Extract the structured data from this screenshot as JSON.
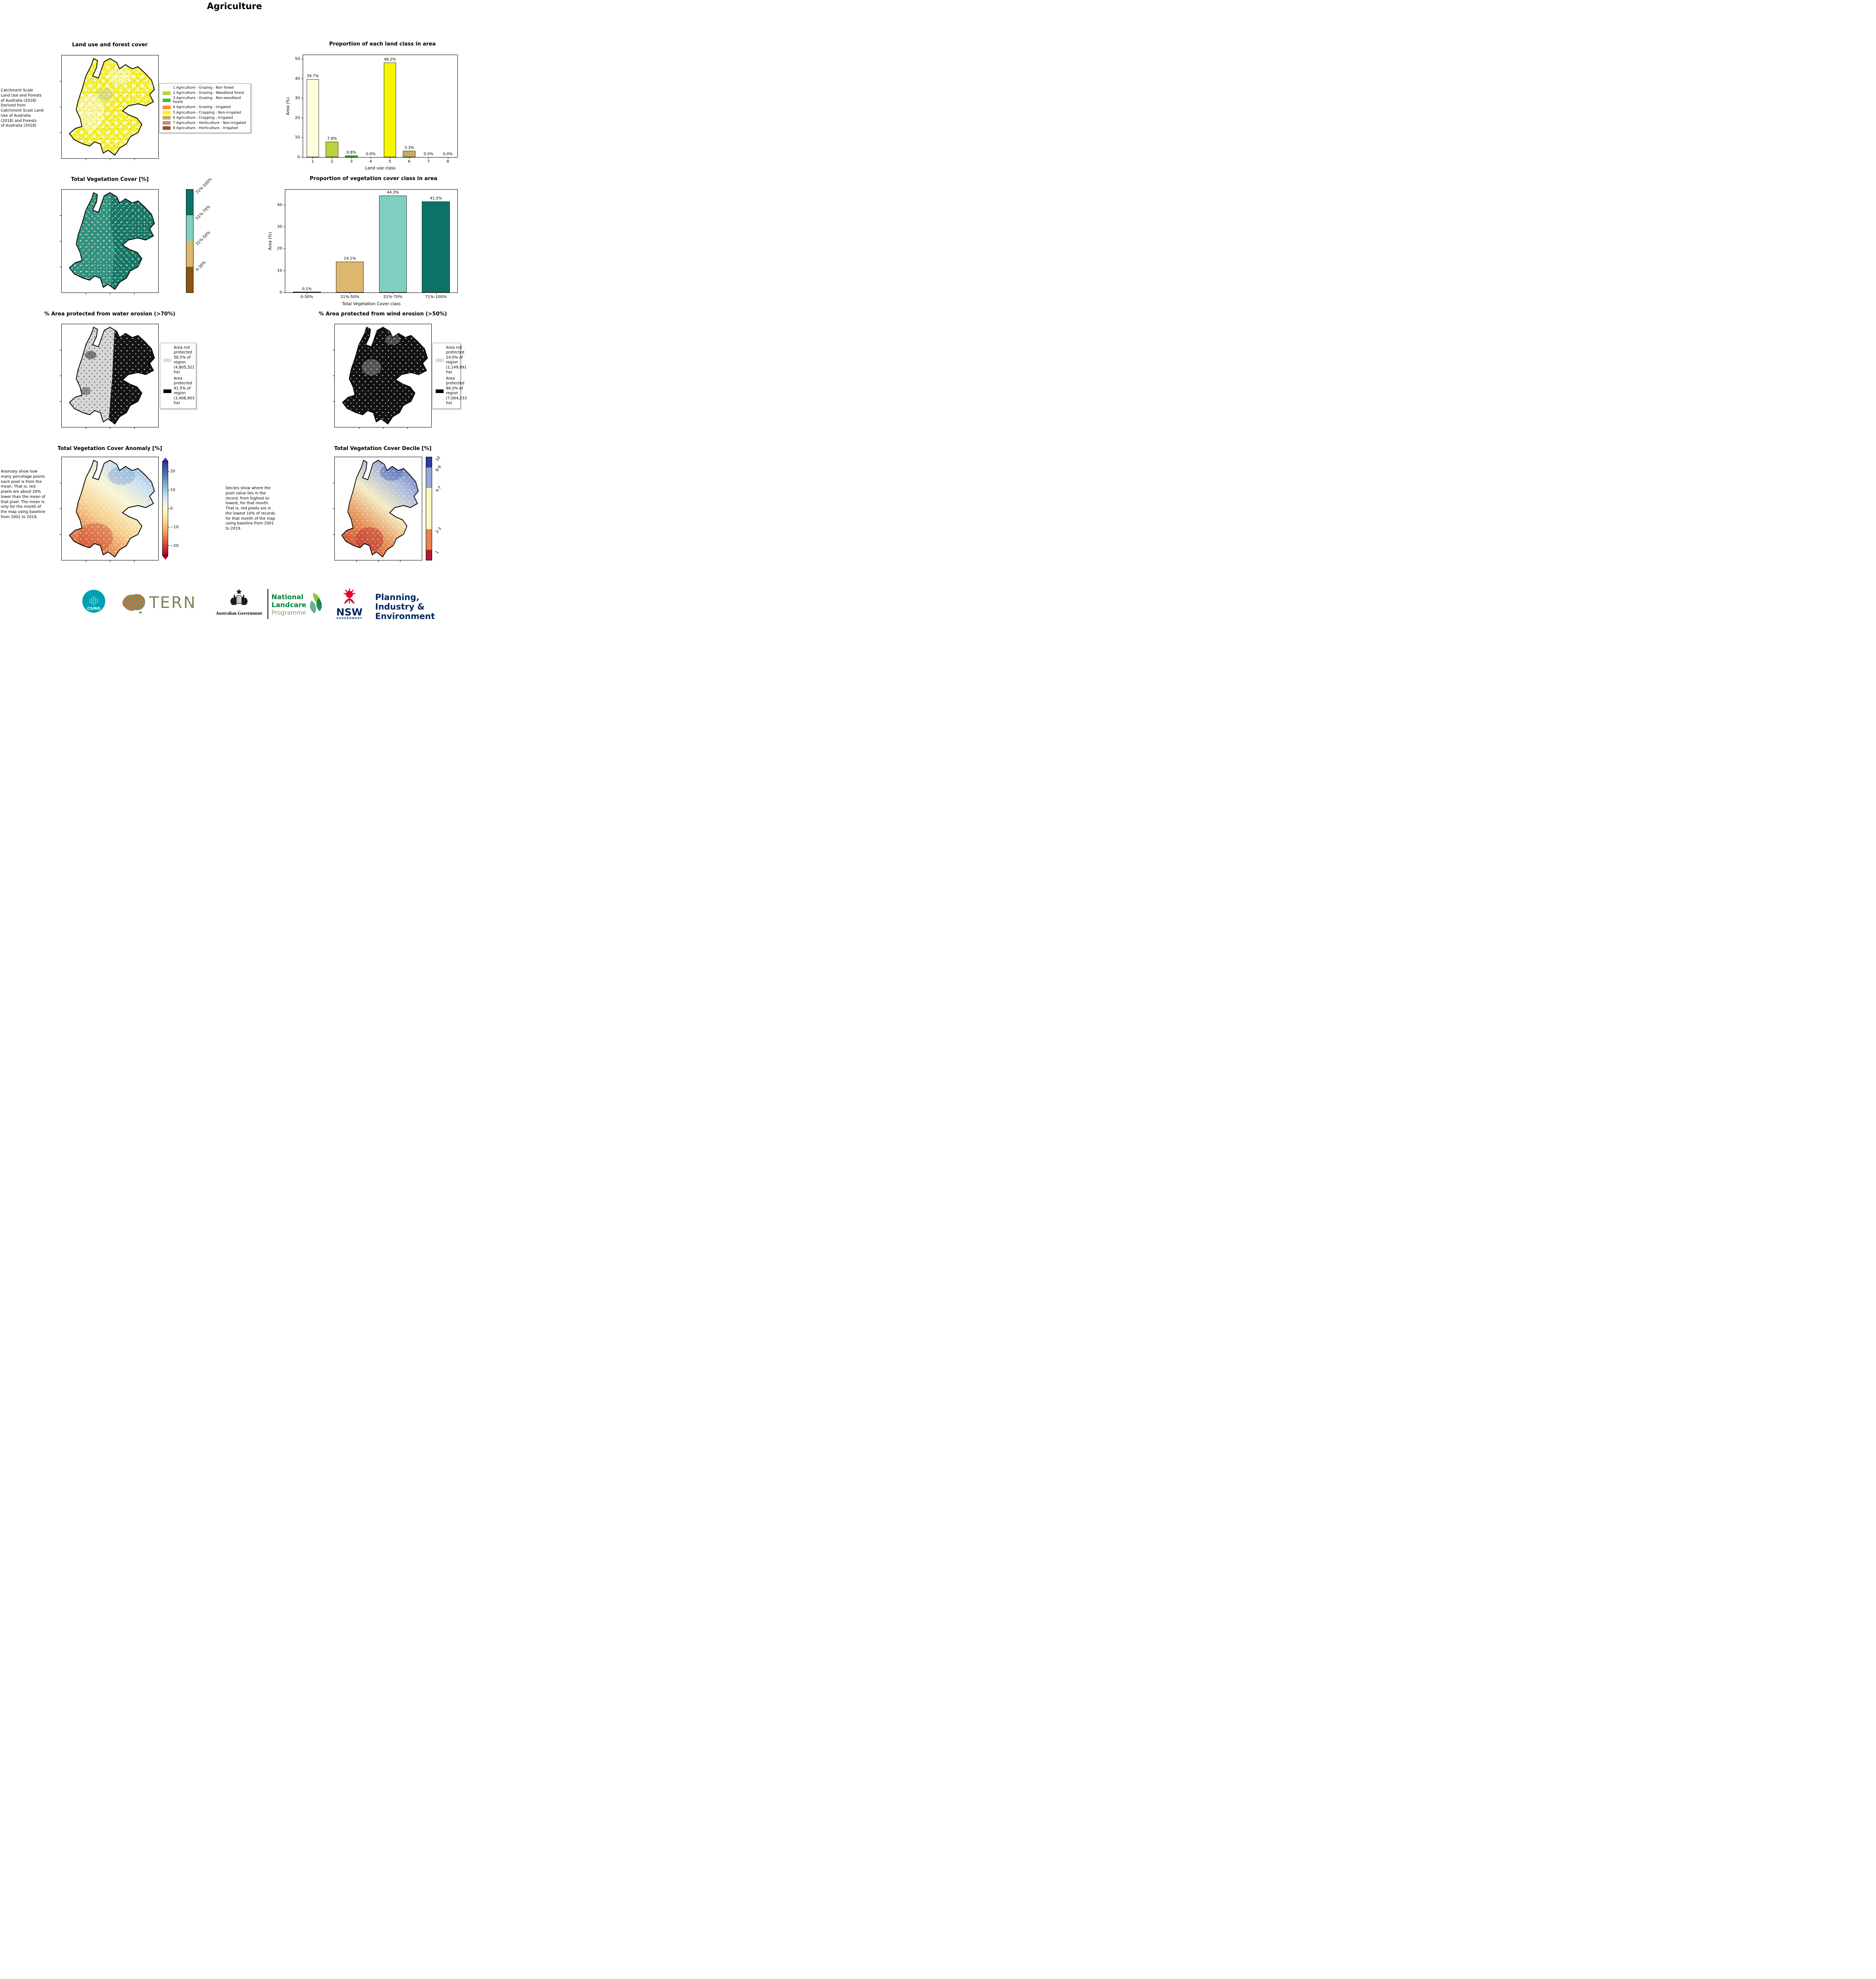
{
  "page": {
    "title": "Agriculture"
  },
  "land_use": {
    "map_title": "Land use and forest cover",
    "side_note": " Catchment Scale\nLand Use and Forests\nof Australia (2018)\nDerived from\nCatchment Scale Land\nUse of Australia\n(2018) and Forests\nof Australia (2018)",
    "legend_items": [
      {
        "label": "1 Agriculture - Grazing - Non forest",
        "color": "#ffffdb"
      },
      {
        "label": "2 Agriculture - Grazing - Woodland forest",
        "color": "#bdd13c"
      },
      {
        "label": "3 Agriculture - Grazing - Non-woodland forest",
        "color": "#53b83a"
      },
      {
        "label": "4 Agriculture - Grazing - Irrigated",
        "color": "#ff8c1f"
      },
      {
        "label": "5 Agriculture - Cropping - Non-irrigated",
        "color": "#f7f500"
      },
      {
        "label": "6 Agriculture - Cropping - Irrigated",
        "color": "#c7ab60"
      },
      {
        "label": "7 Agriculture - Horticulture - Non-irrigated",
        "color": "#bc8f8f"
      },
      {
        "label": "8 Agriculture - Horticulture - Irrigated",
        "color": "#a0522d"
      }
    ]
  },
  "veg_cover": {
    "map_title": "Total Vegetation Cover [%]",
    "colorbar": [
      {
        "label": "71%-100%",
        "color": "#0d7266"
      },
      {
        "label": "51%-70%",
        "color": "#7fd0c2"
      },
      {
        "label": "31%-50%",
        "color": "#deb76f"
      },
      {
        "label": "0-30%",
        "color": "#8a5613"
      }
    ]
  },
  "water_erosion": {
    "map_title": "% Area protected from water erosion (>70%)",
    "legend": [
      {
        "label": "Area not\nprotected\n58.5% of\nregion\n(4,805,321\nha)",
        "color": "#dcdcdc"
      },
      {
        "label": "Area\nprotected\n41.5% of\nregion\n(3,408,903\nha)",
        "color": "#000000"
      }
    ]
  },
  "wind_erosion": {
    "map_title": "% Area protected from wind erosion (>50%)",
    "legend": [
      {
        "label": "Area not\nprotected\n14.0% of\nregion\n(1,149,991\nha)",
        "color": "#dcdcdc"
      },
      {
        "label": "Area\nprotected\n86.0% of\nregion\n(7,064,233\nha)",
        "color": "#000000"
      }
    ]
  },
  "anomaly": {
    "map_title": "Total Vegetation Cover Anomaly [%]",
    "note": "Anomaly show how many percetage points each pixel is from the mean. That is, red pixels are about 20% lower than the mean of that pixel. The mean is only for the month of the map using baseline from 2001 to 2019.",
    "colorbar_ticks": [
      20,
      10,
      0,
      -10,
      -20
    ]
  },
  "decile": {
    "map_title": "Total Vegetation Cover Decile [%]",
    "note": "Deciles show where the pixel value lies in the record, from highest to lowest, for that month. That is, red pixels are in the lowest 10% of records for that month of the map using baseline from 2001 to 2019.",
    "colorbar": [
      {
        "label": "10",
        "color": "#2c3e99",
        "height": 10
      },
      {
        "label": "8-9",
        "color": "#93a8d4",
        "height": 20
      },
      {
        "label": "4-7",
        "color": "#fdf6c0",
        "height": 40
      },
      {
        "label": "2-3",
        "color": "#e5824e",
        "height": 20
      },
      {
        "label": "1",
        "color": "#b01b2e",
        "height": 10
      }
    ]
  },
  "chart_data": [
    {
      "type": "bar",
      "title": "Proportion of each land class in area",
      "categories": [
        "1",
        "2",
        "3",
        "4",
        "5",
        "6",
        "7",
        "8"
      ],
      "values": [
        39.7,
        7.8,
        0.8,
        0.0,
        48.2,
        3.3,
        0.0,
        0.0
      ],
      "labels": [
        "39.7%",
        "7.8%",
        "0.8%",
        "0.0%",
        "48.2%",
        "3.3%",
        "0.0%",
        "0.0%"
      ],
      "bar_colors": [
        "#ffffdb",
        "#bdd13c",
        "#53b83a",
        "#ff8c1f",
        "#f7f500",
        "#c7ab60",
        "#bc8f8f",
        "#a0522d"
      ],
      "xlabel": "Land use class",
      "ylabel": "Area (%)",
      "ylim": [
        0,
        52
      ],
      "yticks": [
        0,
        10,
        20,
        30,
        40,
        50
      ],
      "legend_position": "none",
      "grid": false
    },
    {
      "type": "bar",
      "title": "Proportion of vegetation cover class in area",
      "categories": [
        "0-30%",
        "31%-50%",
        "51%-70%",
        "71%-100%"
      ],
      "values": [
        0.1,
        14.1,
        44.3,
        41.5
      ],
      "labels": [
        "0.1%",
        "14.1%",
        "44.3%",
        "41.5%"
      ],
      "bar_colors": [
        "#8a4d0f",
        "#deb76f",
        "#7fcfc0",
        "#0d7266"
      ],
      "xlabel": "Total Vegetation Cover class",
      "ylabel": "Area (%)",
      "ylim": [
        0,
        47
      ],
      "yticks": [
        0,
        10,
        20,
        30,
        40
      ],
      "legend_position": "none",
      "grid": false
    }
  ],
  "footer": {
    "csiro": "CSIRO",
    "tern": "TERN",
    "aus_gov": "Australian Government",
    "landcare": [
      "National",
      "Landcare",
      "Programme"
    ],
    "nsw": "NSW",
    "nsw_sub": "GOVERNMENT",
    "agency": [
      "Planning,",
      "Industry &",
      "Environment"
    ]
  }
}
